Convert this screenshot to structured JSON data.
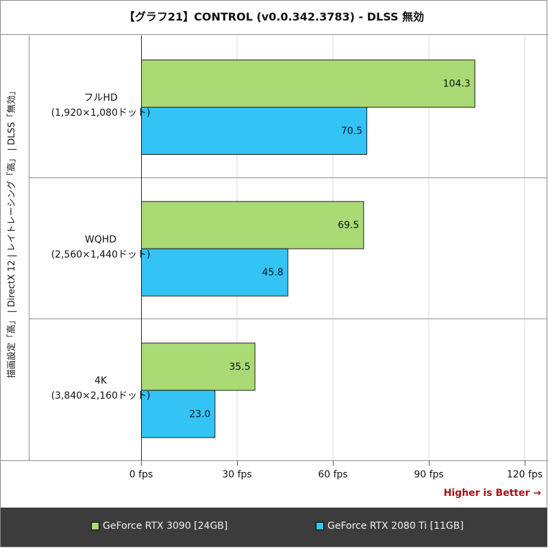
{
  "title": "【グラフ21】CONTROL (v0.0.342.3783) - DLSS 無効",
  "y_axis_label": "描画設定「高」 | DirectX 12 | レイトレーシング「高」 | DLSS「無効」",
  "note": "Higher is Better →",
  "chart_data": {
    "type": "bar",
    "orientation": "horizontal",
    "categories": [
      {
        "name": "フルHD",
        "resolution": "(1,920×1,080ドット)"
      },
      {
        "name": "WQHD",
        "resolution": "(2,560×1,440ドット)"
      },
      {
        "name": "4K",
        "resolution": "(3,840×2,160ドット)"
      }
    ],
    "series": [
      {
        "name": "GeForce RTX 3090 [24GB]",
        "color": "#a9da74",
        "values": [
          104.3,
          69.5,
          35.5
        ],
        "labels": [
          "104.3",
          "69.5",
          "35.5"
        ]
      },
      {
        "name": "GeForce RTX 2080 Ti [11GB]",
        "color": "#33c3f5",
        "values": [
          70.5,
          45.8,
          23.0
        ],
        "labels": [
          "70.5",
          "45.8",
          "23.0"
        ]
      }
    ],
    "xlim": [
      0,
      120
    ],
    "xticks": [
      0,
      30,
      60,
      90,
      120
    ],
    "xtick_labels": [
      "0 fps",
      "30 fps",
      "60 fps",
      "90 fps",
      "120 fps"
    ],
    "xlabel": "",
    "grid": true,
    "legend": "bottom"
  }
}
